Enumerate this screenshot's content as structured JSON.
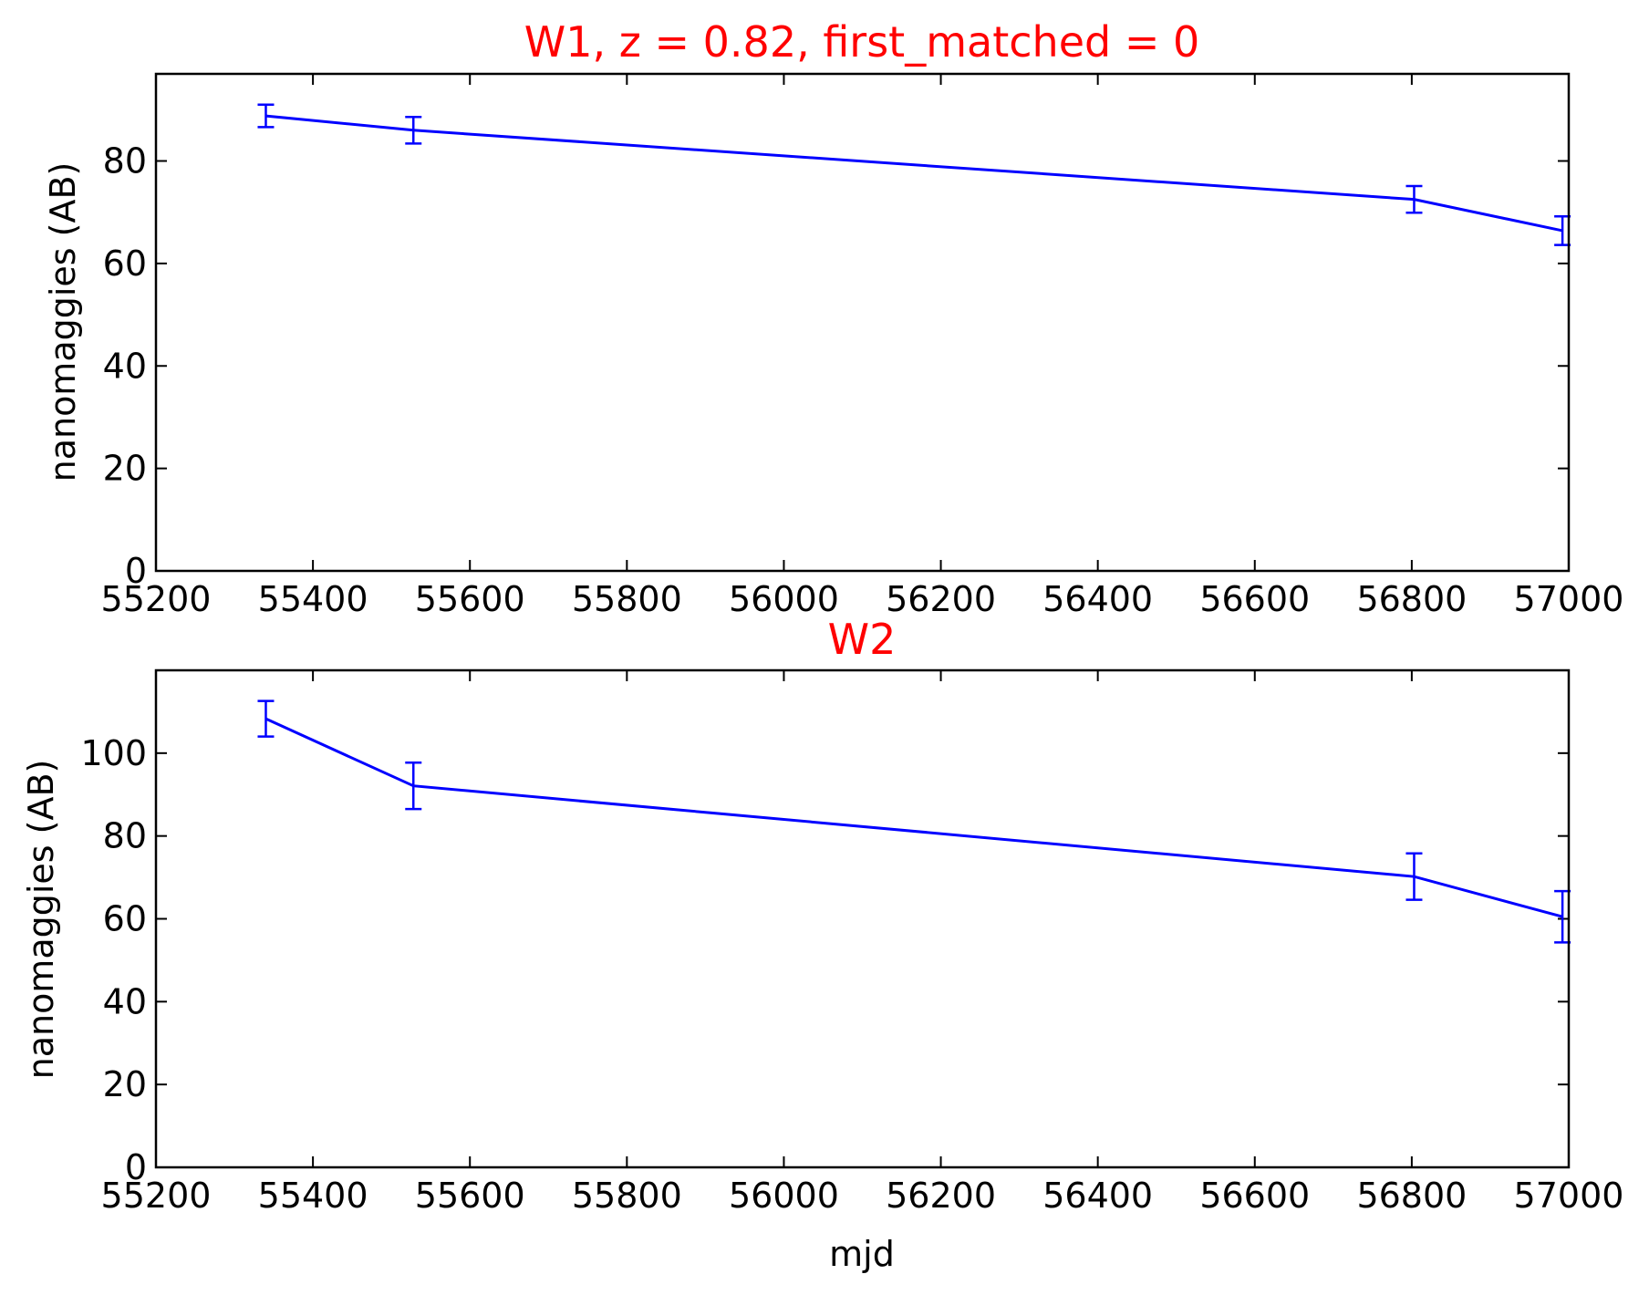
{
  "colors": {
    "title": "#ff0000",
    "series": "#0000ff",
    "axes": "#000000",
    "background": "#ffffff"
  },
  "chart_data": [
    {
      "type": "line",
      "title": "W1, z = 0.82, first_matched = 0",
      "xlabel": "",
      "ylabel": "nanomaggies (AB)",
      "xlim": [
        55200,
        57000
      ],
      "ylim": [
        0,
        97
      ],
      "xticks": [
        55200,
        55400,
        55600,
        55800,
        56000,
        56200,
        56400,
        56600,
        56800,
        57000
      ],
      "yticks": [
        0,
        20,
        40,
        60,
        80
      ],
      "grid": false,
      "series": [
        {
          "x": [
            55340,
            55528,
            56803,
            56992
          ],
          "y": [
            88.8,
            86.0,
            72.5,
            66.4
          ],
          "yerr": [
            2.2,
            2.6,
            2.6,
            2.8
          ]
        }
      ]
    },
    {
      "type": "line",
      "title": "W2",
      "xlabel": "mjd",
      "ylabel": "nanomaggies (AB)",
      "xlim": [
        55200,
        57000
      ],
      "ylim": [
        0,
        120
      ],
      "xticks": [
        55200,
        55400,
        55600,
        55800,
        56000,
        56200,
        56400,
        56600,
        56800,
        57000
      ],
      "yticks": [
        0,
        20,
        40,
        60,
        80,
        100
      ],
      "grid": false,
      "series": [
        {
          "x": [
            55340,
            55528,
            56803,
            56992
          ],
          "y": [
            108.3,
            92.1,
            70.2,
            60.5
          ],
          "yerr": [
            4.3,
            5.6,
            5.6,
            6.2
          ]
        }
      ]
    }
  ]
}
